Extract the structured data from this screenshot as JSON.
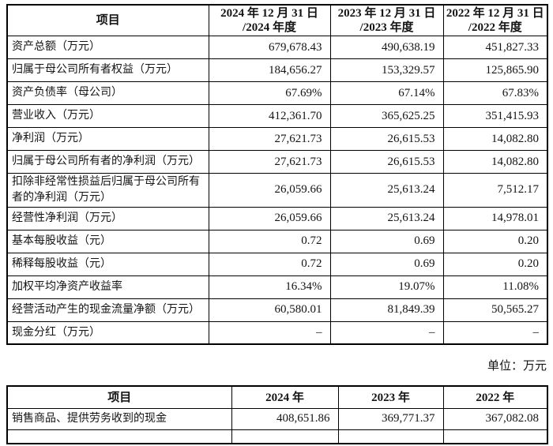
{
  "unit_note": "单位：万元",
  "table1": {
    "headers": [
      "项目",
      "2024 年 12 月 31 日\n/2024 年度",
      "2023 年 12 月 31 日\n/2023 年度",
      "2022 年 12 月 31 日\n/2022 年度"
    ],
    "rows": [
      [
        "资产总额（万元）",
        "679,678.43",
        "490,638.19",
        "451,827.33"
      ],
      [
        "归属于母公司所有者权益（万元）",
        "184,656.27",
        "153,329.57",
        "125,865.90"
      ],
      [
        "资产负债率（母公司）",
        "67.69%",
        "67.14%",
        "67.83%"
      ],
      [
        "营业收入（万元）",
        "412,361.70",
        "365,625.25",
        "351,415.93"
      ],
      [
        "净利润（万元）",
        "27,621.73",
        "26,615.53",
        "14,082.80"
      ],
      [
        "归属于母公司所有者的净利润（万元）",
        "27,621.73",
        "26,615.53",
        "14,082.80"
      ],
      [
        "扣除非经常性损益后归属于母公司所有者的净利润（万元）",
        "26,059.66",
        "25,613.24",
        "7,512.17"
      ],
      [
        "经营性净利润（万元）",
        "26,059.66",
        "25,613.24",
        "14,978.01"
      ],
      [
        "基本每股收益（元）",
        "0.72",
        "0.69",
        "0.20"
      ],
      [
        "稀释每股收益（元）",
        "0.72",
        "0.69",
        "0.20"
      ],
      [
        "加权平均净资产收益率",
        "16.34%",
        "19.07%",
        "11.08%"
      ],
      [
        "经营活动产生的现金流量净额（万元）",
        "60,580.01",
        "81,849.39",
        "50,565.27"
      ],
      [
        "现金分红（万元）",
        "–",
        "–",
        "–"
      ]
    ]
  },
  "table2": {
    "headers": [
      "项目",
      "2024 年",
      "2023 年",
      "2022 年"
    ],
    "rows": [
      [
        "销售商品、提供劳务收到的现金",
        "408,651.86",
        "369,771.37",
        "367,082.08"
      ],
      [
        "",
        "",
        "",
        ""
      ]
    ]
  }
}
